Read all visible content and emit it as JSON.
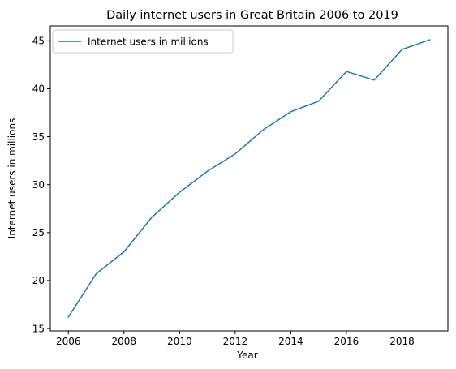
{
  "chart_data": {
    "type": "line",
    "title": "Daily internet users in Great Britain 2006 to 2019",
    "xlabel": "Year",
    "ylabel": "Internet users in millions",
    "xlim": [
      2005.35,
      2019.65
    ],
    "ylim": [
      14.75,
      46.55
    ],
    "x_ticks": [
      2006,
      2008,
      2010,
      2012,
      2014,
      2016,
      2018
    ],
    "y_ticks": [
      15,
      20,
      25,
      30,
      35,
      40,
      45
    ],
    "grid": false,
    "legend_position": "upper-left",
    "series": [
      {
        "name": "Internet users in millions",
        "color": "#1f77b4",
        "x": [
          2006,
          2007,
          2008,
          2009,
          2010,
          2011,
          2012,
          2013,
          2014,
          2015,
          2016,
          2017,
          2018,
          2019
        ],
        "y": [
          16.2,
          20.7,
          23.0,
          26.6,
          29.2,
          31.4,
          33.2,
          35.7,
          37.6,
          38.7,
          41.8,
          40.9,
          44.1,
          45.1
        ]
      }
    ]
  }
}
